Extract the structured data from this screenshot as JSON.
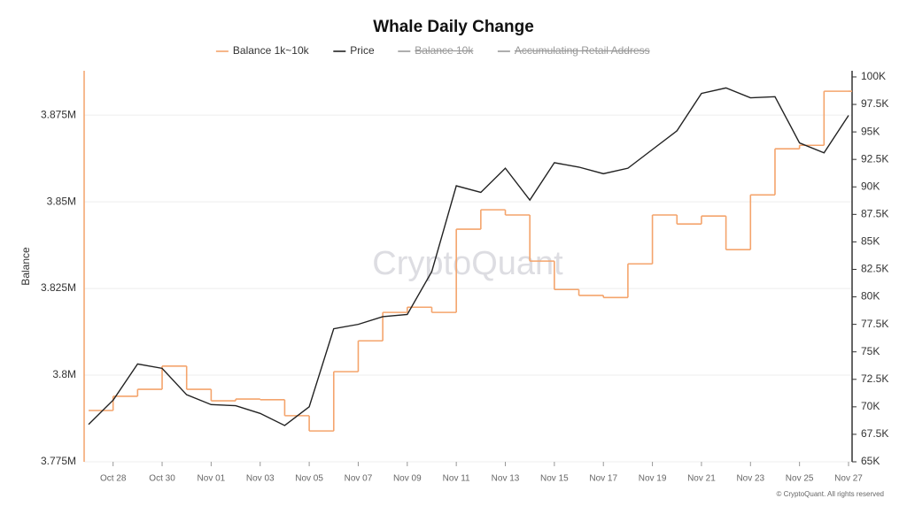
{
  "chart_data": {
    "type": "line",
    "title": "Whale Daily Change",
    "y_label": "Balance",
    "watermark": "CryptoQuant",
    "footer": "© CryptoQuant. All rights reserved",
    "categories": [
      null,
      "Oct 28",
      null,
      "Oct 30",
      null,
      "Nov 01",
      null,
      "Nov 03",
      null,
      "Nov 05",
      null,
      "Nov 07",
      null,
      "Nov 09",
      null,
      "Nov 11",
      null,
      "Nov 13",
      null,
      "Nov 15",
      null,
      "Nov 17",
      null,
      "Nov 19",
      null,
      "Nov 21",
      null,
      "Nov 23",
      null,
      "Nov 25",
      null,
      "Nov 27"
    ],
    "series": [
      {
        "name": "Balance 1k~10k",
        "color": "#f4a46c",
        "step": true,
        "values": [
          3789800,
          3793900,
          3795900,
          3802600,
          3795900,
          3792600,
          3793100,
          3792900,
          3788300,
          3783900,
          3801000,
          3809900,
          3818100,
          3819600,
          3818100,
          3842100,
          3847700,
          3846200,
          3832900,
          3824700,
          3823000,
          3822400,
          3832100,
          3846200,
          3843600,
          3845900,
          3836200,
          3852000,
          3865300,
          3866300,
          3881900,
          3881900
        ]
      },
      {
        "name": "Price",
        "color": "#222222",
        "axis": "y2",
        "values": [
          68400,
          70600,
          73900,
          73500,
          71100,
          70200,
          70100,
          69400,
          68300,
          70000,
          77100,
          77500,
          78200,
          78400,
          82300,
          90100,
          89500,
          91700,
          88800,
          92200,
          91800,
          91200,
          91700,
          93400,
          95100,
          98500,
          99000,
          98100,
          98200,
          94000,
          93100,
          96500
        ]
      },
      {
        "name": "Balance 10k",
        "color": "#999999",
        "visible": false
      },
      {
        "name": "Accumulating Retail Address",
        "color": "#999999",
        "visible": false
      }
    ],
    "ylim": [
      3775000,
      3887800
    ],
    "yticks": [
      {
        "value": 3775000,
        "label": "3.775M"
      },
      {
        "value": 3800000,
        "label": "3.8M"
      },
      {
        "value": 3825000,
        "label": "3.825M"
      },
      {
        "value": 3850000,
        "label": "3.85M"
      },
      {
        "value": 3875000,
        "label": "3.875M"
      }
    ],
    "y2lim": [
      65000,
      100560
    ],
    "y2ticks": [
      {
        "value": 65000,
        "label": "65K"
      },
      {
        "value": 67500,
        "label": "67.5K"
      },
      {
        "value": 70000,
        "label": "70K"
      },
      {
        "value": 72500,
        "label": "72.5K"
      },
      {
        "value": 75000,
        "label": "75K"
      },
      {
        "value": 77500,
        "label": "77.5K"
      },
      {
        "value": 80000,
        "label": "80K"
      },
      {
        "value": 82500,
        "label": "82.5K"
      },
      {
        "value": 85000,
        "label": "85K"
      },
      {
        "value": 87500,
        "label": "87.5K"
      },
      {
        "value": 90000,
        "label": "90K"
      },
      {
        "value": 92500,
        "label": "92.5K"
      },
      {
        "value": 95000,
        "label": "95K"
      },
      {
        "value": 97500,
        "label": "97.5K"
      },
      {
        "value": 100000,
        "label": "100K"
      }
    ],
    "grid": true
  }
}
